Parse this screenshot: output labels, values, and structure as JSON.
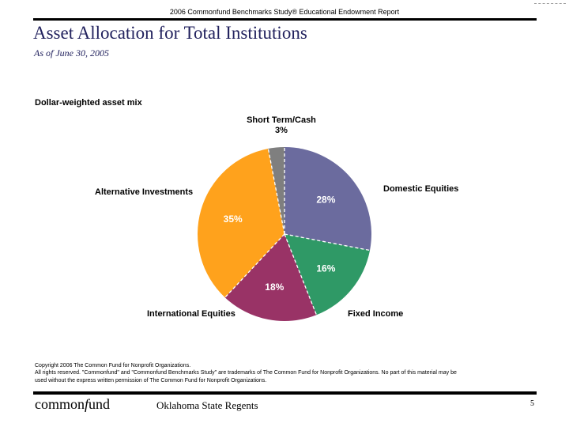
{
  "header": {
    "report_title": "2006 Commonfund Benchmarks Study® Educational Endowment Report"
  },
  "title": "Asset Allocation for Total Institutions",
  "subtitle": "As of June 30, 2005",
  "section_label": "Dollar-weighted asset mix",
  "chart_data": {
    "type": "pie",
    "title": "Dollar-weighted asset mix",
    "start_angle_deg": 0,
    "direction": "clockwise",
    "separator_color": "#FFFFFF",
    "slices": [
      {
        "label": "Domestic Equities",
        "value": 28,
        "pct_label": "28%",
        "color": "#6B6B9E",
        "pct_inside": true
      },
      {
        "label": "Fixed Income",
        "value": 16,
        "pct_label": "16%",
        "color": "#2F9966",
        "pct_inside": true
      },
      {
        "label": "International Equities",
        "value": 18,
        "pct_label": "18%",
        "color": "#993366",
        "pct_inside": true
      },
      {
        "label": "Alternative Investments",
        "value": 35,
        "pct_label": "35%",
        "color": "#FFA21C",
        "pct_inside": true
      },
      {
        "label": "Short Term/Cash",
        "value": 3,
        "pct_label": "3%",
        "color": "#7F7F7F",
        "pct_inside": false
      }
    ]
  },
  "copyright_lines": [
    "Copyright 2006 The Common Fund for Nonprofit Organizations.",
    "All rights reserved. \"Commonfund\" and \"Commonfund Benchmarks Study\" are trademarks of The Common Fund for Nonprofit Organizations. No part of this material may be",
    "used without the express written permission of The Common Fund for Nonprofit Organizations."
  ],
  "footer": {
    "logo_prefix": "common",
    "logo_italic": "f",
    "logo_suffix": "und",
    "center_text": "Oklahoma State Regents",
    "page_number": "5"
  },
  "colors": {
    "title_text": "#22225E",
    "rule": "#000000",
    "background": "#FFFFFF"
  }
}
